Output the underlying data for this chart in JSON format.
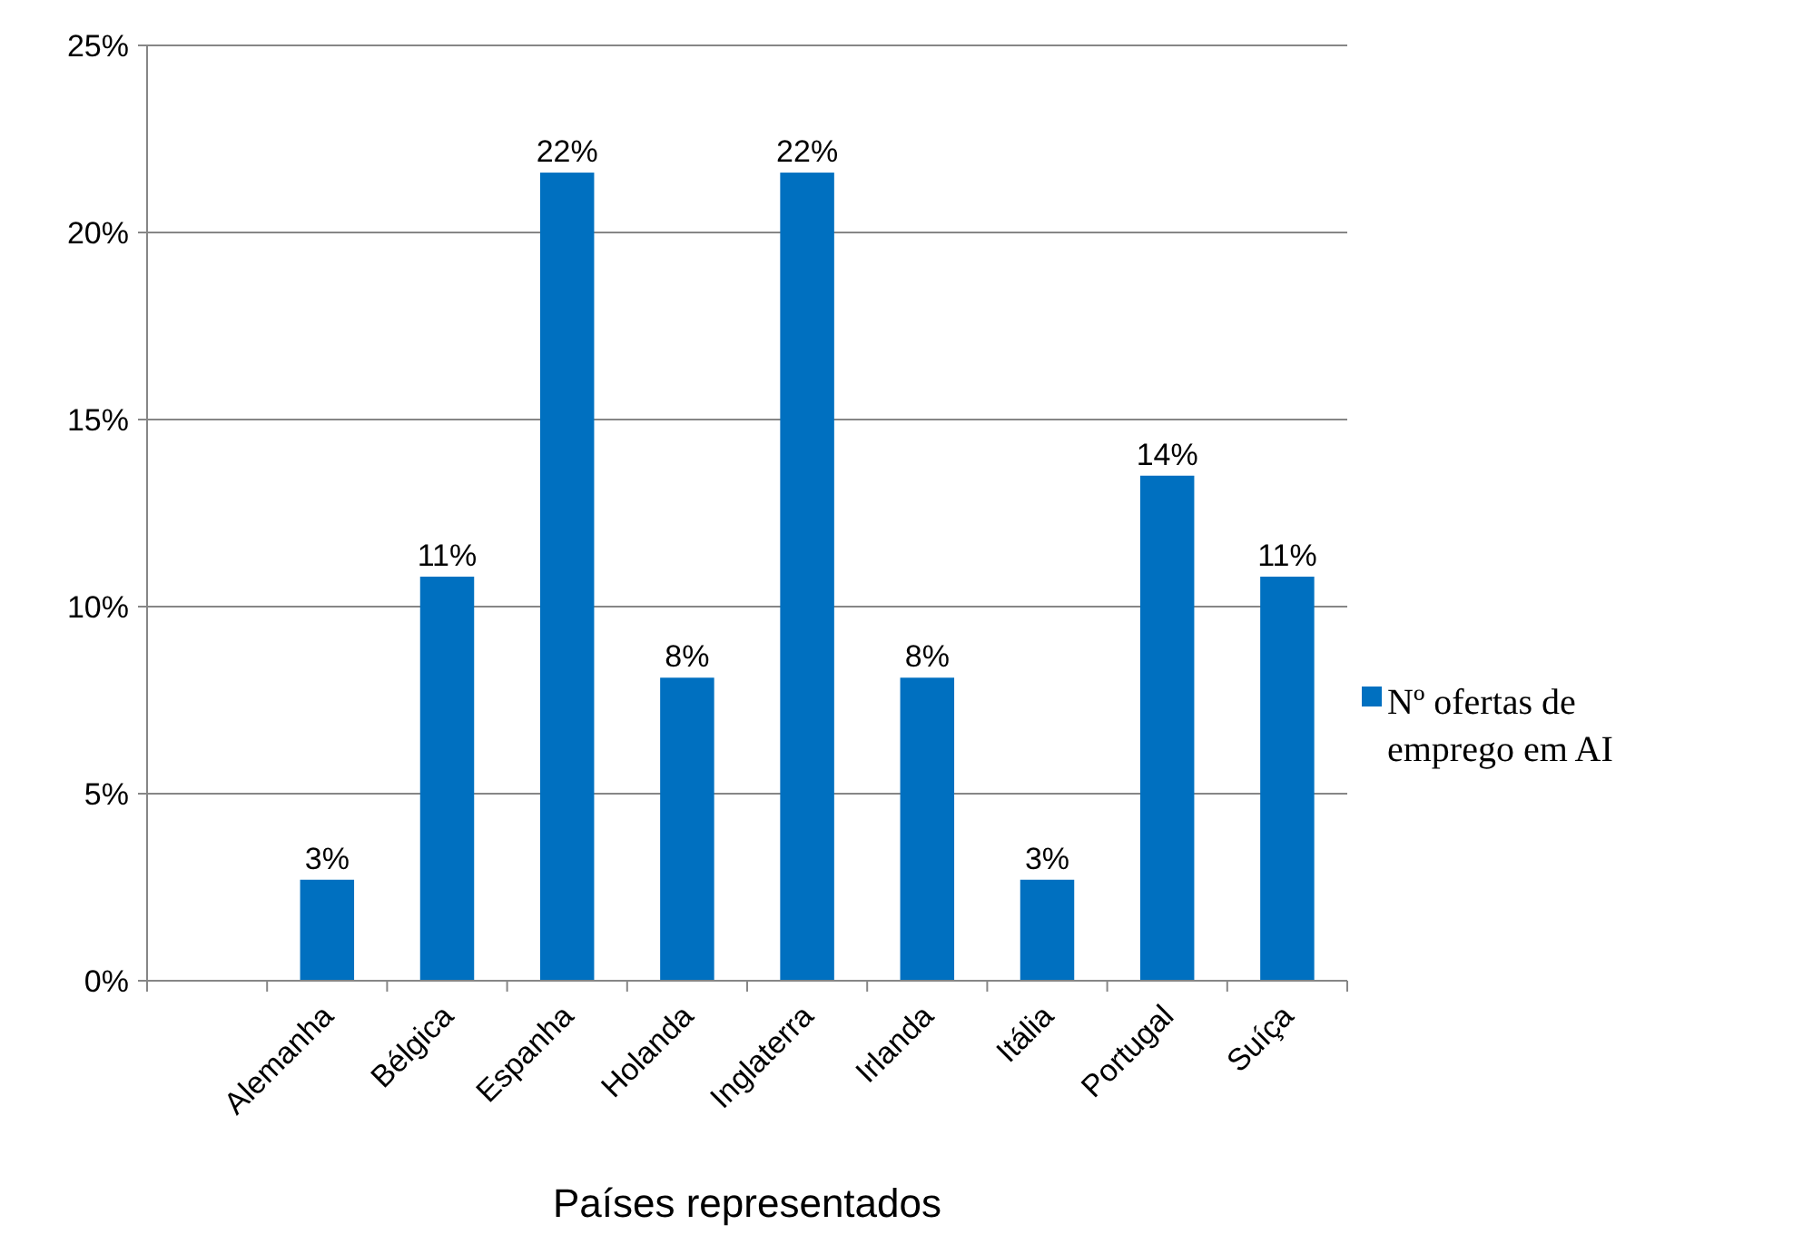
{
  "chart_data": {
    "type": "bar",
    "categories": [
      null,
      "Alemanha",
      "Bélgica",
      "Espanha",
      "Holanda",
      "Inglaterra",
      "Irlanda",
      "Itália",
      "Portugal",
      "Suíça"
    ],
    "series": [
      {
        "name": "Nº ofertas de emprego em AI",
        "color": "#0070c0",
        "values": [
          null,
          2.7,
          10.8,
          21.6,
          8.1,
          21.6,
          8.1,
          2.7,
          13.5,
          10.8
        ],
        "value_labels": [
          null,
          "3%",
          "11%",
          "22%",
          "8%",
          "22%",
          "8%",
          "3%",
          "14%",
          "11%"
        ]
      }
    ],
    "xlabel": "Países representados",
    "ylim": [
      0,
      25
    ],
    "yticks": [
      {
        "value": 0,
        "label": "0%"
      },
      {
        "value": 5,
        "label": "5%"
      },
      {
        "value": 10,
        "label": "10%"
      },
      {
        "value": 15,
        "label": "15%"
      },
      {
        "value": 20,
        "label": "20%"
      },
      {
        "value": 25,
        "label": "25%"
      }
    ],
    "grid": "y",
    "legend": "right"
  }
}
